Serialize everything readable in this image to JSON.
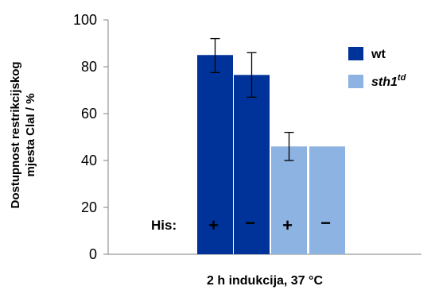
{
  "chart_data": {
    "type": "bar",
    "ylabel_line1": "Dostupnost restrikcijskog",
    "ylabel_line2": "mjesta ClaI / %",
    "xlabel": "2 h indukcija, 37 °C",
    "ylim": [
      0,
      100
    ],
    "yticks": [
      0,
      20,
      40,
      60,
      80,
      100
    ],
    "grid": false,
    "legend_position": "top-right",
    "legend": [
      {
        "name": "wt",
        "color": "#003399"
      },
      {
        "name": "sth1",
        "superscript": "td",
        "color": "#8db3e2"
      }
    ],
    "his_label": "His:",
    "bars": [
      {
        "series": "wt",
        "his": "+",
        "value": 85,
        "err_low": 77.5,
        "err_high": 92,
        "color": "#003399"
      },
      {
        "series": "wt",
        "his": "−",
        "value": 76.5,
        "err_low": 67,
        "err_high": 86,
        "color": "#003399"
      },
      {
        "series": "sth1td",
        "his": "+",
        "value": 46,
        "err_low": 40,
        "err_high": 52,
        "color": "#8db3e2"
      },
      {
        "series": "sth1td",
        "his": "−",
        "value": 46,
        "err_low": null,
        "err_high": null,
        "color": "#8db3e2"
      }
    ]
  }
}
